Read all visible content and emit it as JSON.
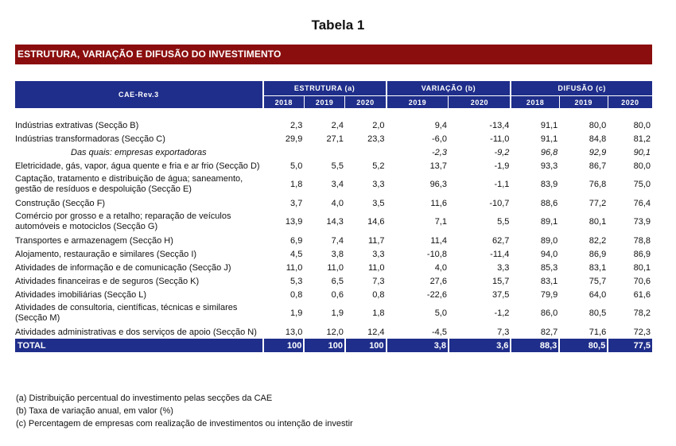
{
  "title": "Tabela 1",
  "banner": "ESTRUTURA, VARIAÇÃO E DIFUSÃO DO INVESTIMENTO",
  "header": {
    "row_label": "CAE-Rev.3",
    "groups": [
      "ESTRUTURA (a)",
      "VARIAÇÃO (b)",
      "DIFUSÃO (c)"
    ],
    "years": [
      "2018",
      "2019",
      "2020",
      "2019",
      "2020",
      "2018",
      "2019",
      "2020"
    ]
  },
  "rows": [
    {
      "label": "Indústrias extrativas (Secção B)",
      "values": [
        "2,3",
        "2,4",
        "2,0",
        "9,4",
        "-13,4",
        "91,1",
        "80,0",
        "80,0"
      ]
    },
    {
      "label": "Indústrias transformadoras (Secção C)",
      "values": [
        "29,9",
        "27,1",
        "23,3",
        "-6,0",
        "-11,0",
        "91,1",
        "84,8",
        "81,2"
      ]
    },
    {
      "label": "Das quais: empresas exportadoras",
      "values": [
        "",
        "",
        "",
        "-2,3",
        "-9,2",
        "96,8",
        "92,9",
        "90,1"
      ]
    },
    {
      "label": "Eletricidade, gás, vapor, água quente e fria e ar frio (Secção D)",
      "values": [
        "5,0",
        "5,5",
        "5,2",
        "13,7",
        "-1,9",
        "93,3",
        "86,7",
        "80,0"
      ]
    },
    {
      "label": "Captação, tratamento e distribuição de água; saneamento, gestão de resíduos e despoluição (Secção E)",
      "values": [
        "1,8",
        "3,4",
        "3,3",
        "96,3",
        "-1,1",
        "83,9",
        "76,8",
        "75,0"
      ]
    },
    {
      "label": "Construção (Secção F)",
      "values": [
        "3,7",
        "4,0",
        "3,5",
        "11,6",
        "-10,7",
        "88,6",
        "77,2",
        "76,4"
      ]
    },
    {
      "label": "Comércio por grosso e a retalho; reparação de veículos automóveis e motociclos (Secção G)",
      "values": [
        "13,9",
        "14,3",
        "14,6",
        "7,1",
        "5,5",
        "89,1",
        "80,1",
        "73,9"
      ]
    },
    {
      "label": "Transportes e armazenagem (Secção H)",
      "values": [
        "6,9",
        "7,4",
        "11,7",
        "11,4",
        "62,7",
        "89,0",
        "82,2",
        "78,8"
      ]
    },
    {
      "label": "Alojamento, restauração e similares (Secção I)",
      "values": [
        "4,5",
        "3,8",
        "3,3",
        "-10,8",
        "-11,4",
        "94,0",
        "86,9",
        "86,9"
      ]
    },
    {
      "label": "Atividades de informação e de comunicação (Secção J)",
      "values": [
        "11,0",
        "11,0",
        "11,0",
        "4,0",
        "3,3",
        "85,3",
        "83,1",
        "80,1"
      ]
    },
    {
      "label": "Atividades financeiras e de seguros (Secção K)",
      "values": [
        "5,3",
        "6,5",
        "7,3",
        "27,6",
        "15,7",
        "83,1",
        "75,7",
        "70,6"
      ]
    },
    {
      "label": "Atividades imobiliárias (Secção L)",
      "values": [
        "0,8",
        "0,6",
        "0,8",
        "-22,6",
        "37,5",
        "79,9",
        "64,0",
        "61,6"
      ]
    },
    {
      "label": "Atividades de consultoria, científicas, técnicas e similares (Secção M)",
      "values": [
        "1,9",
        "1,9",
        "1,8",
        "5,0",
        "-1,2",
        "86,0",
        "80,5",
        "78,2"
      ]
    },
    {
      "label": "Atividades administrativas e dos serviços de apoio (Secção N)",
      "values": [
        "13,0",
        "12,0",
        "12,4",
        "-4,5",
        "7,3",
        "82,7",
        "71,6",
        "72,3"
      ]
    }
  ],
  "total": {
    "label": "TOTAL",
    "values": [
      "100",
      "100",
      "100",
      "3,8",
      "3,6",
      "88,3",
      "80,5",
      "77,5"
    ]
  },
  "notes": [
    "(a) Distribuição percentual do investimento pelas secções da CAE",
    "(b) Taxa de variação anual, em valor (%)",
    "(c) Percentagem de empresas com realização de investimentos ou intenção de investir"
  ],
  "colors": {
    "banner": "#8b0e0e",
    "header": "#1f2e8a"
  }
}
